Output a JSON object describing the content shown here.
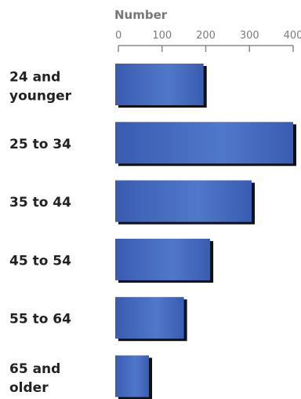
{
  "chart_data": {
    "type": "bar",
    "orientation": "horizontal",
    "axis_title": "Number",
    "xlim": [
      0,
      400
    ],
    "ticks": [
      0,
      100,
      200,
      300,
      400
    ],
    "tick_labels": [
      "0",
      "100",
      "200",
      "300",
      "400"
    ],
    "categories": [
      [
        "24 and",
        "younger"
      ],
      [
        "25 to 34"
      ],
      [
        "35 to 44"
      ],
      [
        "45 to 54"
      ],
      [
        "55 to 64"
      ],
      [
        "65 and",
        "older"
      ]
    ],
    "values": [
      195,
      400,
      305,
      210,
      150,
      70
    ],
    "bar_color": "#3a5cb0",
    "bar_color_light": "#5078c8",
    "shadow_color": "#111111"
  }
}
